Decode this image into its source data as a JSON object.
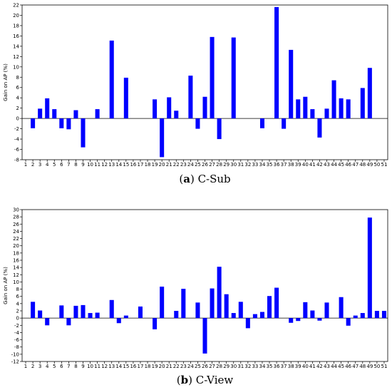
{
  "chart_data": [
    {
      "type": "bar",
      "caption_prefix": "(a)",
      "caption_letter": "a",
      "caption_text": "C-Sub",
      "ylabel": "Gain on AP (%)",
      "xlabel": "",
      "ylim": [
        -8,
        22
      ],
      "yticks": [
        -8,
        -6,
        -4,
        -2,
        0,
        2,
        4,
        6,
        8,
        10,
        12,
        14,
        16,
        18,
        20,
        22
      ],
      "grid": false,
      "bar_color": "#0000ff",
      "categories": [
        "1",
        "2",
        "3",
        "4",
        "5",
        "6",
        "7",
        "8",
        "9",
        "10",
        "11",
        "12",
        "13",
        "14",
        "15",
        "16",
        "17",
        "18",
        "19",
        "20",
        "21",
        "22",
        "23",
        "24",
        "25",
        "26",
        "27",
        "28",
        "29",
        "30",
        "31",
        "32",
        "33",
        "34",
        "35",
        "36",
        "37",
        "38",
        "39",
        "40",
        "41",
        "42",
        "43",
        "44",
        "45",
        "46",
        "47",
        "48",
        "49",
        "50",
        "51"
      ],
      "values": [
        0,
        -1.9,
        1.9,
        3.9,
        1.8,
        -1.9,
        -2.1,
        1.6,
        -5.6,
        0,
        1.8,
        0,
        15.1,
        0,
        7.9,
        0,
        0,
        0,
        3.7,
        -7.5,
        4.1,
        1.5,
        0,
        8.3,
        -2.0,
        4.2,
        15.8,
        -4.0,
        0,
        15.7,
        0,
        0,
        0,
        -1.9,
        0,
        21.6,
        -2.0,
        13.3,
        3.7,
        4.2,
        1.8,
        -3.7,
        1.9,
        7.4,
        3.9,
        3.7,
        0,
        5.9,
        9.8,
        0,
        0
      ]
    },
    {
      "type": "bar",
      "caption_prefix": "(b)",
      "caption_letter": "b",
      "caption_text": "C-View",
      "ylabel": "Gain on AP (%)",
      "xlabel": "",
      "ylim": [
        -12,
        30
      ],
      "yticks": [
        -12,
        -10,
        -8,
        -6,
        -4,
        -2,
        0,
        2,
        4,
        6,
        8,
        10,
        12,
        14,
        16,
        18,
        20,
        22,
        24,
        26,
        28,
        30
      ],
      "grid": false,
      "bar_color": "#0000ff",
      "categories": [
        "1",
        "2",
        "3",
        "4",
        "5",
        "6",
        "7",
        "8",
        "9",
        "10",
        "11",
        "12",
        "13",
        "14",
        "15",
        "16",
        "17",
        "18",
        "19",
        "20",
        "21",
        "22",
        "23",
        "24",
        "25",
        "26",
        "27",
        "28",
        "29",
        "30",
        "31",
        "32",
        "33",
        "34",
        "35",
        "36",
        "37",
        "38",
        "39",
        "40",
        "41",
        "42",
        "43",
        "44",
        "45",
        "46",
        "47",
        "48",
        "49",
        "50",
        "51"
      ],
      "values": [
        0,
        4.5,
        2.1,
        -2.0,
        0,
        3.5,
        -2.0,
        3.4,
        3.6,
        1.4,
        1.5,
        0,
        5.0,
        -1.4,
        0.7,
        0,
        3.2,
        0,
        -3.1,
        8.7,
        0,
        2.0,
        8.1,
        0,
        4.3,
        -9.8,
        8.2,
        14.2,
        6.6,
        1.4,
        4.5,
        -2.8,
        1.1,
        1.7,
        6.1,
        8.4,
        0,
        -1.3,
        -0.8,
        4.4,
        2.1,
        -0.7,
        4.3,
        0,
        5.8,
        -2.1,
        0.7,
        1.4,
        27.8,
        2.0,
        2.0
      ]
    }
  ]
}
